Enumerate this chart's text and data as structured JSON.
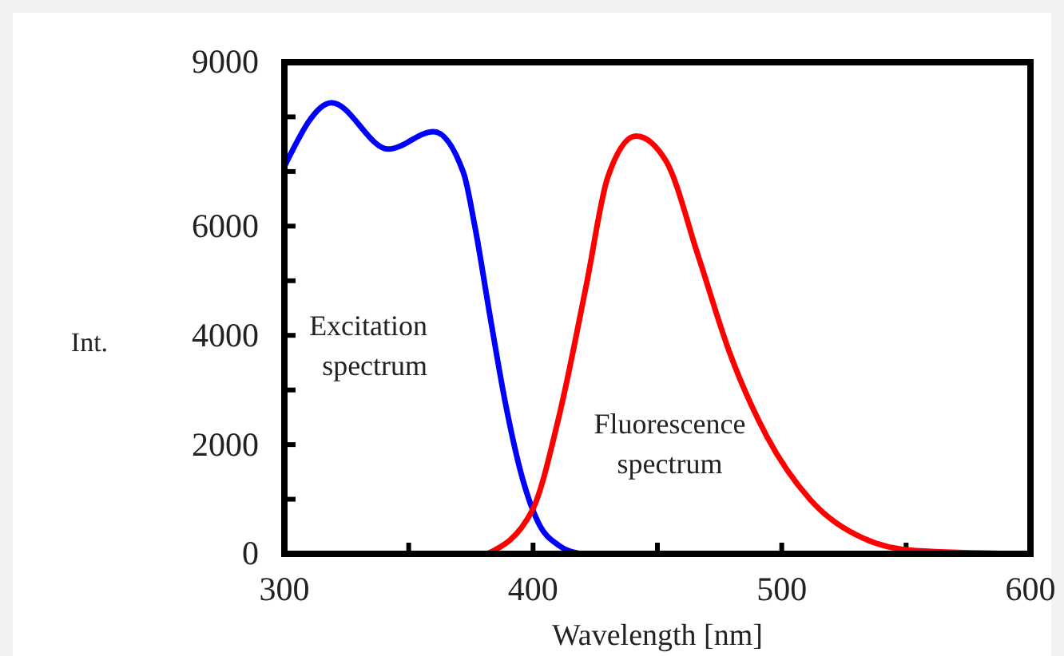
{
  "chart_data": {
    "type": "line",
    "xlabel": "Wavelength [nm]",
    "ylabel": "Int.",
    "xlim": [
      300,
      600
    ],
    "xticks": [
      300,
      {
        "value": 350,
        "label": null
      },
      400,
      {
        "value": 450,
        "label": null
      },
      500,
      {
        "value": 550,
        "label": null
      },
      600
    ],
    "ylim": [
      0,
      9000
    ],
    "yticks": [
      0,
      {
        "value": 1000,
        "label": null
      },
      2000,
      {
        "value": 3000,
        "label": null
      },
      4000,
      {
        "value": 5000,
        "label": null
      },
      6000,
      {
        "value": 7000,
        "label": null
      },
      {
        "value": 8000,
        "label": null
      },
      9000
    ],
    "grid": false,
    "legend": false,
    "marker": "none",
    "line_style": "solid",
    "series": [
      {
        "name": "Excitation spectrum",
        "color": "#0000ff",
        "x": [
          300,
          319,
          341.8,
          360,
          372,
          376.5,
          383,
          389,
          395.8,
          402,
          410.5,
          419
        ],
        "values": [
          7090,
          8260,
          7410,
          7730,
          6980,
          6020,
          4270,
          2730,
          1370,
          580,
          150,
          0
        ]
      },
      {
        "name": "Fluorescence spectrum",
        "color": "#ff0000",
        "x": [
          381.6,
          399.6,
          410.5,
          421.5,
          430,
          441.4,
          453.6,
          466.5,
          479,
          494,
          511.5,
          532.6,
          553.8,
          600
        ],
        "values": [
          0,
          790,
          2530,
          4940,
          6890,
          7650,
          7180,
          5440,
          3690,
          2150,
          990,
          290,
          60,
          0
        ]
      }
    ]
  }
}
